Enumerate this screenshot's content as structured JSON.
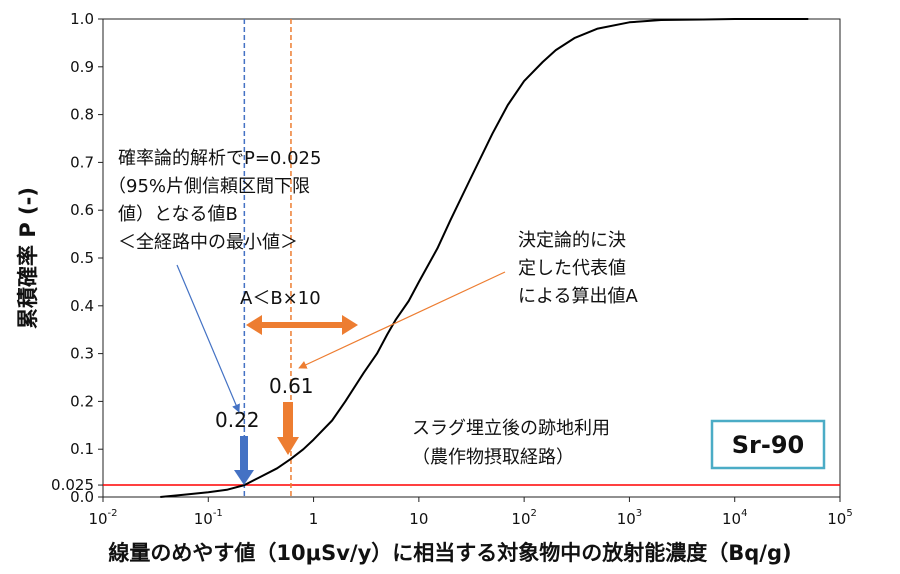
{
  "chart_data": {
    "type": "line",
    "xscale": "log",
    "xlim": [
      0.01,
      100000
    ],
    "ylim": [
      0,
      1
    ],
    "grid": false,
    "xlabel": "線量のめやす値（10μSv/y）に相当する対象物中の放射能濃度（Bq/g)",
    "ylabel": "累積確率 P (-)",
    "x_ticks": [
      {
        "base": "10",
        "exp": "-2",
        "value": 0.01
      },
      {
        "base": "10",
        "exp": "-1",
        "value": 0.1
      },
      {
        "base": "1",
        "exp": "",
        "value": 1
      },
      {
        "base": "10",
        "exp": "",
        "value": 10
      },
      {
        "base": "10",
        "exp": "2",
        "value": 100
      },
      {
        "base": "10",
        "exp": "3",
        "value": 1000
      },
      {
        "base": "10",
        "exp": "4",
        "value": 10000
      },
      {
        "base": "10",
        "exp": "5",
        "value": 100000
      }
    ],
    "y_ticks": [
      {
        "label": "0.0",
        "value": 0
      },
      {
        "label": "0.025",
        "value": 0.025
      },
      {
        "label": "0.1",
        "value": 0.1
      },
      {
        "label": "0.2",
        "value": 0.2
      },
      {
        "label": "0.3",
        "value": 0.3
      },
      {
        "label": "0.4",
        "value": 0.4
      },
      {
        "label": "0.5",
        "value": 0.5
      },
      {
        "label": "0.6",
        "value": 0.6
      },
      {
        "label": "0.7",
        "value": 0.7
      },
      {
        "label": "0.8",
        "value": 0.8
      },
      {
        "label": "0.9",
        "value": 0.9
      },
      {
        "label": "1.0",
        "value": 1.0
      }
    ],
    "series": [
      {
        "x": [
          0.035,
          0.06,
          0.1,
          0.15,
          0.22,
          0.3,
          0.45,
          0.61,
          0.8,
          1.0,
          1.5,
          2.0,
          3.0,
          4.0,
          5.0,
          6.0,
          8.0,
          10.0,
          15.0,
          20.0,
          30.0,
          50.0,
          70.0,
          100.0,
          150.0,
          200.0,
          300.0,
          500.0,
          1000.0,
          2000.0,
          5000.0,
          10000.0,
          20000.0,
          50000.0
        ],
        "y": [
          0.0,
          0.005,
          0.01,
          0.015,
          0.025,
          0.04,
          0.06,
          0.08,
          0.1,
          0.12,
          0.16,
          0.2,
          0.26,
          0.3,
          0.34,
          0.37,
          0.41,
          0.45,
          0.52,
          0.58,
          0.66,
          0.76,
          0.82,
          0.87,
          0.91,
          0.935,
          0.96,
          0.98,
          0.993,
          0.998,
          0.999,
          1.0,
          1.0,
          1.0
        ],
        "color": "#000000"
      }
    ],
    "reference_lines": {
      "horizontal": {
        "y": 0.025,
        "color": "#ff0000"
      },
      "vertical_b": {
        "x": 0.22,
        "color": "#4472c4"
      },
      "vertical_a": {
        "x": 0.61,
        "color": "#ed7d31"
      }
    },
    "annotations": {
      "value_b": "0.22",
      "value_a": "0.61",
      "ratio": "A＜B×10",
      "box_b": [
        "確率論的解析でP=0.025",
        "（95%片側信頼区間下限",
        "値）となる値B",
        "＜全経路中の最小値＞"
      ],
      "box_a": [
        "決定論的に決",
        "定した代表値",
        "による算出値A"
      ],
      "scenario": [
        "スラグ埋立後の跡地利用",
        "（農作物摂取経路）"
      ],
      "nuclide": "Sr-90"
    },
    "colors": {
      "orange": "#ed7d31",
      "blue": "#4472c4",
      "red": "#ff0000",
      "badge_border": "#4bacc6"
    }
  }
}
